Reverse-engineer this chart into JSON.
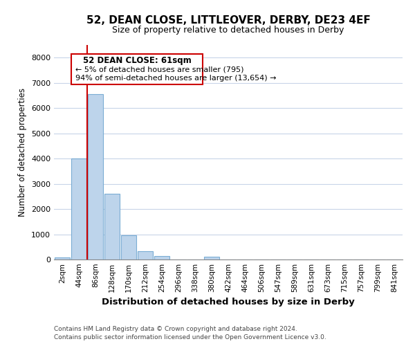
{
  "title": "52, DEAN CLOSE, LITTLEOVER, DERBY, DE23 4EF",
  "subtitle": "Size of property relative to detached houses in Derby",
  "xlabel": "Distribution of detached houses by size in Derby",
  "ylabel": "Number of detached properties",
  "footnote1": "Contains HM Land Registry data © Crown copyright and database right 2024.",
  "footnote2": "Contains public sector information licensed under the Open Government Licence v3.0.",
  "annotation_line1": "52 DEAN CLOSE: 61sqm",
  "annotation_line2": "← 5% of detached houses are smaller (795)",
  "annotation_line3": "94% of semi-detached houses are larger (13,654) →",
  "bar_labels": [
    "2sqm",
    "44sqm",
    "86sqm",
    "128sqm",
    "170sqm",
    "212sqm",
    "254sqm",
    "296sqm",
    "338sqm",
    "380sqm",
    "422sqm",
    "464sqm",
    "506sqm",
    "547sqm",
    "589sqm",
    "631sqm",
    "673sqm",
    "715sqm",
    "757sqm",
    "799sqm",
    "841sqm"
  ],
  "bar_values": [
    80,
    4000,
    6550,
    2600,
    950,
    330,
    130,
    0,
    0,
    100,
    0,
    0,
    0,
    0,
    0,
    0,
    0,
    0,
    0,
    0,
    0
  ],
  "bar_color": "#bdd4eb",
  "bar_edge_color": "#7aadd4",
  "red_line_color": "#cc0000",
  "annotation_box_color": "#cc0000",
  "ylim": [
    0,
    8500
  ],
  "yticks": [
    0,
    1000,
    2000,
    3000,
    4000,
    5000,
    6000,
    7000,
    8000
  ],
  "background_color": "#ffffff",
  "grid_color": "#c8d4e8"
}
